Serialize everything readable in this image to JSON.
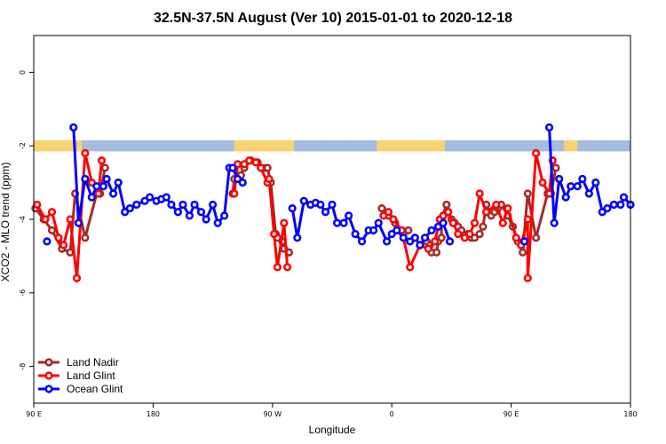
{
  "chart_data": {
    "type": "line",
    "title": "32.5N-37.5N August (Ver 10)   2015-01-01 to 2020-12-18",
    "xlabel": "Longitude",
    "ylabel": "XCO2 - MLO trend (ppm)",
    "xlim": [
      0,
      360
    ],
    "ylim": [
      -9,
      1
    ],
    "x_ticks": [
      {
        "value": 0,
        "label": "90 E"
      },
      {
        "value": 72,
        "label": "180"
      },
      {
        "value": 144,
        "label": "90 W"
      },
      {
        "value": 216,
        "label": "0"
      },
      {
        "value": 288,
        "label": "90 E"
      },
      {
        "value": 360,
        "label": "180"
      }
    ],
    "y_ticks": [
      {
        "value": 0,
        "label": "0"
      },
      {
        "value": -2,
        "label": "-2"
      },
      {
        "value": -4,
        "label": "-4"
      },
      {
        "value": -6,
        "label": "-6"
      },
      {
        "value": -8,
        "label": "-8"
      }
    ],
    "land_mask_band": {
      "y_top": -1.85,
      "y_bottom": -2.15,
      "ocean_color": "#a4bce0",
      "land_color": "#f8d470",
      "land_segments": [
        [
          0,
          24
        ],
        [
          26,
          29
        ],
        [
          121,
          157
        ],
        [
          207,
          248
        ],
        [
          320,
          328
        ]
      ]
    },
    "legend_position": "bottom-left",
    "series": [
      {
        "name": "Land Nadir",
        "color": "#a52a2a",
        "segments": [
          [
            [
              1,
              -3.7
            ],
            [
              6,
              -4.0
            ],
            [
              11,
              -4.3
            ],
            [
              17,
              -4.8
            ],
            [
              22,
              -4.9
            ],
            [
              25,
              -3.3
            ],
            [
              31,
              -4.5
            ],
            [
              38,
              -3.3
            ],
            [
              40,
              -3.3
            ],
            [
              43,
              -2.6
            ]
          ],
          [
            [
              120,
              -3.3
            ],
            [
              121,
              -2.9
            ],
            [
              125,
              -2.8
            ],
            [
              127,
              -2.6
            ],
            [
              131,
              -2.4
            ],
            [
              135,
              -2.45
            ],
            [
              140,
              -2.6
            ],
            [
              141,
              -2.6
            ],
            [
              143,
              -3.0
            ],
            [
              146,
              -4.4
            ],
            [
              147,
              -4.5
            ]
          ],
          [
            [
              150,
              -4.6
            ],
            [
              151,
              -4.8
            ],
            [
              154,
              -4.9
            ]
          ],
          [
            [
              210,
              -3.7
            ],
            [
              214,
              -3.9
            ],
            [
              218,
              -4.1
            ],
            [
              222,
              -4.3
            ],
            [
              223,
              -4.4
            ],
            [
              226,
              -4.3
            ]
          ],
          [
            [
              237,
              -4.6
            ],
            [
              239,
              -4.7
            ],
            [
              240,
              -4.9
            ],
            [
              243,
              -4.9
            ],
            [
              244,
              -4.6
            ],
            [
              246,
              -4.5
            ],
            [
              246,
              -4.0
            ],
            [
              249,
              -3.6
            ],
            [
              250,
              -3.8
            ],
            [
              252,
              -4.0
            ],
            [
              254,
              -4.1
            ],
            [
              256,
              -4.2
            ],
            [
              258,
              -4.3
            ],
            [
              262,
              -4.4
            ],
            [
              264,
              -4.5
            ],
            [
              266,
              -4.5
            ],
            [
              269,
              -4.4
            ],
            [
              271,
              -4.2
            ],
            [
              273,
              -3.6
            ],
            [
              276,
              -3.9
            ],
            [
              278,
              -3.8
            ],
            [
              280,
              -3.7
            ],
            [
              282,
              -3.6
            ],
            [
              286,
              -3.9
            ],
            [
              289,
              -4.2
            ],
            [
              292,
              -4.6
            ],
            [
              295,
              -4.9
            ],
            [
              298,
              -3.3
            ],
            [
              303,
              -4.5
            ],
            [
              310,
              -3.3
            ],
            [
              312,
              -3.3
            ],
            [
              315,
              -2.6
            ]
          ]
        ]
      },
      {
        "name": "Land Glint",
        "color": "#ff0000",
        "segments": [
          [
            [
              2,
              -3.6
            ],
            [
              7,
              -4.0
            ],
            [
              11,
              -3.8
            ],
            [
              15,
              -4.5
            ],
            [
              18,
              -4.7
            ],
            [
              22,
              -4.0
            ],
            [
              26,
              -5.6
            ],
            [
              31,
              -2.2
            ],
            [
              35,
              -3.0
            ],
            [
              39,
              -3.3
            ],
            [
              41,
              -2.4
            ]
          ],
          [
            [
              121,
              -3.3
            ],
            [
              123,
              -2.5
            ],
            [
              127,
              -2.5
            ],
            [
              130,
              -2.4
            ],
            [
              134,
              -2.45
            ],
            [
              137,
              -2.6
            ],
            [
              141,
              -3.0
            ],
            [
              142,
              -2.9
            ],
            [
              145,
              -4.4
            ],
            [
              147,
              -5.3
            ],
            [
              151,
              -4.1
            ],
            [
              153,
              -5.3
            ]
          ],
          [
            [
              211,
              -3.9
            ],
            [
              214,
              -3.8
            ],
            [
              217,
              -4.0
            ],
            [
              222,
              -4.3
            ],
            [
              227,
              -5.3
            ],
            [
              233,
              -4.7
            ],
            [
              238,
              -4.8
            ],
            [
              242,
              -4.6
            ],
            [
              245,
              -4.0
            ],
            [
              247,
              -3.9
            ],
            [
              250,
              -3.8
            ],
            [
              253,
              -4.1
            ],
            [
              256,
              -4.4
            ],
            [
              260,
              -4.5
            ],
            [
              263,
              -4.4
            ],
            [
              266,
              -4.1
            ],
            [
              269,
              -3.3
            ],
            [
              273,
              -3.8
            ],
            [
              279,
              -3.6
            ],
            [
              283,
              -4.1
            ],
            [
              286,
              -3.7
            ],
            [
              291,
              -4.5
            ],
            [
              294,
              -4.7
            ],
            [
              298,
              -4.0
            ],
            [
              298,
              -5.6
            ],
            [
              303,
              -2.2
            ],
            [
              307,
              -3.0
            ],
            [
              311,
              -3.3
            ],
            [
              313,
              -2.4
            ]
          ]
        ]
      },
      {
        "name": "Ocean Glint",
        "color": "#0000ff",
        "segments": [
          [
            [
              8,
              -4.6
            ]
          ],
          [
            [
              24,
              -1.5
            ],
            [
              27,
              -4.1
            ],
            [
              31,
              -2.9
            ],
            [
              35,
              -3.4
            ],
            [
              38,
              -3.1
            ],
            [
              42,
              -3.1
            ],
            [
              44,
              -2.9
            ],
            [
              48,
              -3.3
            ],
            [
              51,
              -3.0
            ],
            [
              55,
              -3.8
            ],
            [
              58,
              -3.7
            ],
            [
              62,
              -3.6
            ],
            [
              67,
              -3.5
            ],
            [
              70,
              -3.4
            ],
            [
              74,
              -3.5
            ],
            [
              77,
              -3.45
            ],
            [
              80,
              -3.4
            ],
            [
              83,
              -3.6
            ],
            [
              87,
              -3.8
            ],
            [
              90,
              -3.6
            ],
            [
              94,
              -3.9
            ],
            [
              97,
              -3.6
            ],
            [
              101,
              -3.8
            ],
            [
              104,
              -4.0
            ],
            [
              108,
              -3.6
            ],
            [
              111,
              -4.1
            ],
            [
              115,
              -3.9
            ],
            [
              118,
              -2.6
            ],
            [
              120,
              -2.6
            ],
            [
              123,
              -2.9
            ],
            [
              126,
              -3.0
            ]
          ],
          [
            [
              156,
              -3.7
            ],
            [
              159,
              -4.5
            ],
            [
              163,
              -3.5
            ],
            [
              167,
              -3.6
            ],
            [
              170,
              -3.55
            ],
            [
              173,
              -3.6
            ],
            [
              176,
              -3.8
            ],
            [
              180,
              -3.6
            ],
            [
              183,
              -4.1
            ],
            [
              187,
              -4.1
            ],
            [
              190,
              -3.9
            ],
            [
              194,
              -4.4
            ],
            [
              198,
              -4.6
            ],
            [
              202,
              -4.3
            ],
            [
              205,
              -4.3
            ],
            [
              208,
              -4.1
            ],
            [
              213,
              -4.6
            ],
            [
              216,
              -4.4
            ],
            [
              219,
              -4.3
            ],
            [
              223,
              -4.5
            ],
            [
              227,
              -4.6
            ],
            [
              230,
              -4.5
            ],
            [
              233,
              -4.7
            ],
            [
              236,
              -4.5
            ],
            [
              240,
              -4.3
            ],
            [
              244,
              -4.2
            ],
            [
              247,
              -4.1
            ],
            [
              251,
              -4.6
            ]
          ],
          [
            [
              296,
              -4.6
            ]
          ],
          [
            [
              311,
              -1.5
            ],
            [
              314,
              -4.1
            ],
            [
              317,
              -2.9
            ],
            [
              321,
              -3.4
            ],
            [
              324,
              -3.1
            ],
            [
              328,
              -3.1
            ],
            [
              331,
              -2.9
            ],
            [
              335,
              -3.3
            ],
            [
              339,
              -3.0
            ],
            [
              343,
              -3.8
            ],
            [
              346,
              -3.7
            ],
            [
              350,
              -3.6
            ],
            [
              354,
              -3.6
            ],
            [
              356,
              -3.4
            ],
            [
              360,
              -3.6
            ]
          ]
        ]
      }
    ]
  }
}
